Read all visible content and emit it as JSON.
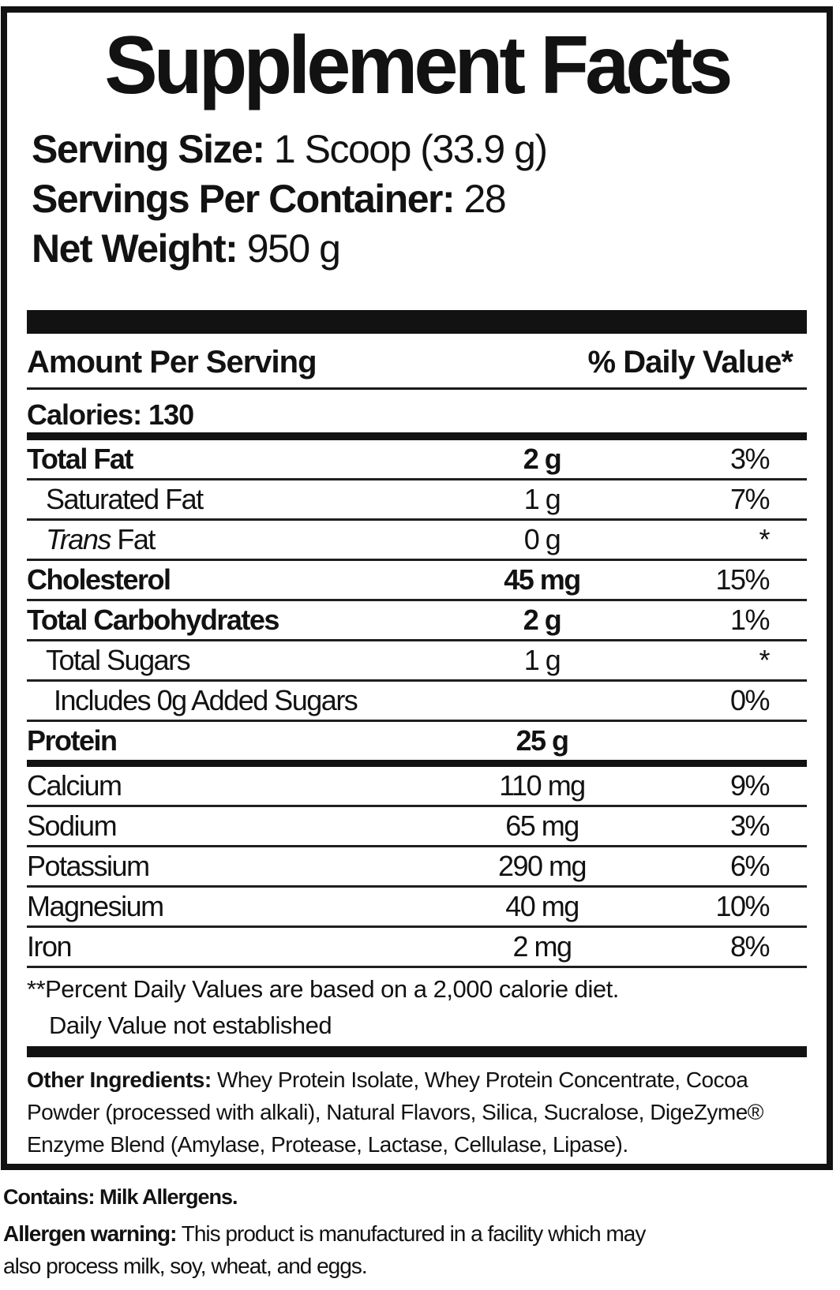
{
  "colors": {
    "ink": "#121212",
    "bg": "#ffffff"
  },
  "label": {
    "title": "Supplement Facts",
    "serving": [
      {
        "label": "Serving Size:",
        "value": "1 Scoop (33.9 g)"
      },
      {
        "label": "Servings Per Container:",
        "value": "28"
      },
      {
        "label": "Net Weight:",
        "value": "950 g"
      }
    ],
    "columns": {
      "amount": "Amount Per Serving",
      "dv": "% Daily Value*"
    },
    "calories": "Calories: 130",
    "nutrients": [
      {
        "label": "Total Fat",
        "amount": "2 g",
        "dv": "3%",
        "bold": true,
        "amount_bold": true,
        "indent": 0,
        "group": "a"
      },
      {
        "label": "Saturated Fat",
        "amount": "1 g",
        "dv": "7%",
        "indent": 1,
        "group": "a"
      },
      {
        "label_italic_prefix": "Trans",
        "label": "Fat",
        "amount": "0 g",
        "dv": "*",
        "indent": 1,
        "group": "a"
      },
      {
        "label": "Cholesterol",
        "amount": "45 mg",
        "dv": "15%",
        "bold": true,
        "amount_bold": true,
        "indent": 0,
        "group": "a"
      },
      {
        "label": "Total Carbohydrates",
        "amount": "2 g",
        "dv": "1%",
        "bold": true,
        "amount_bold": true,
        "indent": 0,
        "group": "a"
      },
      {
        "label": "Total Sugars",
        "amount": "1 g",
        "dv": "*",
        "indent": 1,
        "group": "a"
      },
      {
        "label": "Includes 0g Added Sugars",
        "amount": "",
        "dv": "0%",
        "indent": 2,
        "group": "a"
      },
      {
        "label": "Protein",
        "amount": "25 g",
        "dv": "",
        "bold": true,
        "amount_bold": true,
        "indent": 0,
        "group": "a"
      },
      {
        "label": "Calcium",
        "amount": "110 mg",
        "dv": "9%",
        "indent": 0,
        "group": "b"
      },
      {
        "label": "Sodium",
        "amount": "65 mg",
        "dv": "3%",
        "indent": 0,
        "group": "b"
      },
      {
        "label": "Potassium",
        "amount": "290 mg",
        "dv": "6%",
        "indent": 0,
        "group": "b"
      },
      {
        "label": "Magnesium",
        "amount": "40 mg",
        "dv": "10%",
        "indent": 0,
        "group": "b"
      },
      {
        "label": "Iron",
        "amount": "2 mg",
        "dv": "8%",
        "indent": 0,
        "group": "b"
      }
    ],
    "footnotes": {
      "percent_daily": "**Percent Daily Values are based on a 2,000 calorie diet.",
      "not_established": "Daily Value not established"
    },
    "other_ingredients": {
      "label": "Other Ingredients:",
      "text": " Whey Protein Isolate, Whey Protein Concentrate, Cocoa Powder (processed with alkali), Natural Flavors, Silica, Sucralose, DigeZyme® Enzyme Blend (Amylase, Protease, Lactase, Cellulase, Lipase)."
    }
  },
  "allergen": {
    "contains": "Contains: Milk Allergens.",
    "warning_label": "Allergen warning:",
    "warning_text": " This product is manufactured in a facility which may also process milk, soy, wheat, and eggs."
  }
}
